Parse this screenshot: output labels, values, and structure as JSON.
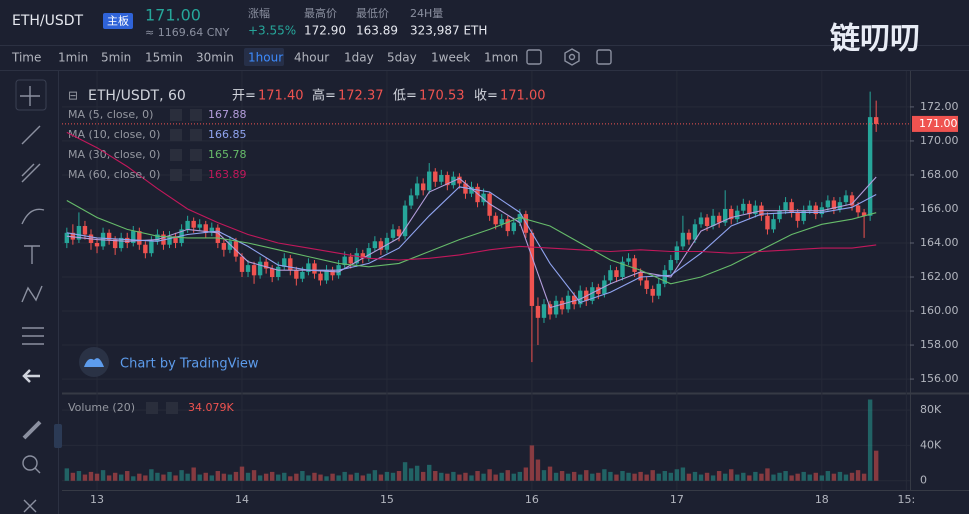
{
  "header": {
    "pair": "ETH/USDT",
    "board": "主板",
    "price": "171.00",
    "cny": "≈ 1169.64 CNY",
    "stats": [
      {
        "label": "涨幅",
        "value": "+3.55%"
      },
      {
        "label": "最高价",
        "value": "172.90"
      },
      {
        "label": "最低价",
        "value": "163.89"
      },
      {
        "label": "24H量",
        "value": "323,987 ETH"
      }
    ],
    "logo": "链叨叨"
  },
  "toolbar": {
    "intervals": [
      "Time",
      "1min",
      "5min",
      "15min",
      "30min",
      "1hour",
      "4hour",
      "1day",
      "5day",
      "1week",
      "1mon"
    ],
    "active": 5
  },
  "chart_data": {
    "type": "candlestick",
    "title": "ETH/USDT, 60",
    "ohlc": {
      "labels": [
        "开=",
        "高=",
        "低=",
        "收="
      ],
      "value_labels": [
        "171.40",
        "172.37",
        "170.53",
        "171.00"
      ]
    },
    "up_color": "#26a69a",
    "down_color": "#ef5350",
    "grid": true,
    "watermark": "Chart by TradingView",
    "xlim": [
      -5.8,
      134.6
    ],
    "xticks": [
      {
        "value": 0,
        "label": "13"
      },
      {
        "value": 24,
        "label": "14"
      },
      {
        "value": 48,
        "label": "15"
      },
      {
        "value": 72,
        "label": "16"
      },
      {
        "value": 96,
        "label": "17"
      },
      {
        "value": 120,
        "label": "18"
      },
      {
        "value": 134,
        "label": "15:"
      }
    ],
    "ylim": [
      155.24,
      173.7
    ],
    "yticks": [
      {
        "value": 156,
        "label": "156.00"
      },
      {
        "value": 158,
        "label": "158.00"
      },
      {
        "value": 160,
        "label": "160.00"
      },
      {
        "value": 162,
        "label": "162.00"
      },
      {
        "value": 164,
        "label": "164.00"
      },
      {
        "value": 166,
        "label": "166.00"
      },
      {
        "value": 168,
        "label": "168.00"
      },
      {
        "value": 170,
        "label": "170.00"
      },
      {
        "value": 172,
        "label": "172.00"
      }
    ],
    "last_price": {
      "value": 171,
      "label": "171.00"
    },
    "x": [
      -5,
      -4,
      -3,
      -2,
      -1,
      0,
      1,
      2,
      3,
      4,
      5,
      6,
      7,
      8,
      9,
      10,
      11,
      12,
      13,
      14,
      15,
      16,
      17,
      18,
      19,
      20,
      21,
      22,
      23,
      24,
      25,
      26,
      27,
      28,
      29,
      30,
      31,
      32,
      33,
      34,
      35,
      36,
      37,
      38,
      39,
      40,
      41,
      42,
      43,
      44,
      45,
      46,
      47,
      48,
      49,
      50,
      51,
      52,
      53,
      54,
      55,
      56,
      57,
      58,
      59,
      60,
      61,
      62,
      63,
      64,
      65,
      66,
      67,
      68,
      69,
      70,
      71,
      72,
      73,
      74,
      75,
      76,
      77,
      78,
      79,
      80,
      81,
      82,
      83,
      84,
      85,
      86,
      87,
      88,
      89,
      90,
      91,
      92,
      93,
      94,
      95,
      96,
      97,
      98,
      99,
      100,
      101,
      102,
      103,
      104,
      105,
      106,
      107,
      108,
      109,
      110,
      111,
      112,
      113,
      114,
      115,
      116,
      117,
      118,
      119,
      120,
      121,
      122,
      123,
      124,
      125,
      126,
      127,
      128,
      129
    ],
    "open": [
      164.0,
      164.6,
      164.2,
      165.0,
      164.5,
      164.0,
      163.8,
      164.6,
      164.2,
      163.7,
      164.3,
      164.0,
      164.7,
      163.9,
      163.4,
      164.1,
      164.5,
      163.9,
      164.4,
      164.0,
      164.8,
      165.3,
      164.9,
      165.1,
      164.6,
      164.9,
      164.0,
      163.6,
      164.1,
      163.2,
      162.3,
      162.7,
      162.1,
      162.9,
      162.5,
      162.0,
      162.6,
      163.1,
      162.4,
      161.9,
      162.3,
      162.8,
      162.2,
      161.8,
      162.4,
      162.1,
      162.7,
      163.2,
      162.8,
      163.4,
      163.1,
      163.7,
      164.1,
      163.6,
      164.3,
      164.8,
      164.4,
      166.2,
      166.8,
      167.5,
      167.1,
      168.2,
      167.6,
      168.0,
      167.4,
      167.9,
      167.5,
      166.9,
      167.3,
      166.4,
      166.9,
      165.6,
      165.1,
      165.4,
      164.7,
      165.2,
      165.7,
      164.6,
      160.3,
      159.6,
      160.4,
      159.8,
      160.6,
      160.1,
      160.9,
      160.4,
      161.2,
      160.6,
      161.4,
      161.0,
      161.8,
      162.4,
      162.0,
      162.9,
      163.1,
      162.3,
      161.8,
      161.3,
      160.9,
      161.6,
      162.4,
      163.0,
      163.8,
      164.6,
      164.2,
      165.1,
      165.5,
      165.0,
      165.6,
      165.2,
      166.0,
      165.4,
      165.9,
      166.3,
      165.7,
      166.2,
      165.6,
      164.8,
      165.4,
      165.9,
      166.4,
      165.8,
      165.3,
      165.9,
      166.2,
      165.7,
      166.1,
      166.5,
      166.0,
      166.4,
      166.8,
      166.2,
      165.8,
      165.6,
      171.4
    ],
    "high": [
      164.9,
      165.1,
      165.8,
      165.3,
      164.8,
      164.3,
      164.9,
      164.8,
      164.4,
      164.6,
      164.6,
      165.0,
      164.9,
      164.1,
      164.4,
      164.8,
      164.7,
      164.7,
      164.6,
      165.1,
      165.6,
      165.5,
      165.4,
      165.3,
      165.2,
      165.1,
      164.2,
      164.4,
      164.3,
      163.4,
      163.0,
      162.9,
      163.2,
      163.1,
      162.7,
      162.9,
      163.4,
      163.3,
      162.6,
      162.6,
      163.1,
      163.0,
      162.4,
      162.7,
      162.6,
      163.0,
      163.5,
      163.4,
      163.7,
      163.6,
      164.0,
      164.4,
      164.3,
      164.6,
      165.1,
      165.0,
      166.5,
      167.2,
      167.9,
      167.8,
      168.7,
      168.4,
      168.3,
      168.2,
      168.2,
      168.1,
      167.7,
      167.6,
      167.5,
      167.2,
      167.0,
      165.8,
      165.7,
      165.6,
      165.5,
      166.0,
      165.9,
      164.8,
      160.8,
      160.7,
      160.6,
      160.9,
      160.8,
      161.2,
      161.1,
      161.5,
      161.4,
      161.7,
      161.6,
      162.1,
      162.7,
      162.6,
      163.2,
      163.4,
      163.3,
      162.5,
      162.0,
      161.5,
      161.9,
      162.7,
      163.3,
      164.1,
      165.6,
      164.8,
      165.4,
      165.8,
      165.7,
      166.0,
      165.8,
      167.1,
      166.2,
      166.2,
      166.6,
      166.5,
      166.5,
      166.4,
      165.8,
      165.7,
      166.2,
      166.7,
      166.6,
      166.0,
      166.2,
      166.5,
      166.4,
      166.4,
      166.8,
      166.7,
      166.7,
      167.1,
      167.0,
      166.4,
      166.0,
      172.9,
      172.37
    ],
    "low": [
      163.7,
      163.9,
      164.0,
      164.2,
      163.6,
      163.4,
      163.6,
      163.9,
      163.3,
      163.5,
      163.7,
      163.8,
      163.6,
      163.1,
      163.2,
      163.9,
      163.6,
      163.7,
      163.7,
      163.8,
      164.6,
      164.6,
      164.7,
      164.3,
      164.4,
      163.7,
      163.2,
      163.4,
      162.9,
      162.0,
      162.0,
      161.6,
      161.9,
      162.2,
      161.7,
      161.8,
      162.4,
      162.1,
      161.5,
      161.7,
      162.1,
      161.9,
      161.5,
      161.6,
      161.8,
      161.9,
      162.5,
      162.5,
      162.6,
      162.8,
      162.9,
      163.5,
      163.3,
      163.4,
      164.1,
      164.1,
      164.2,
      166.0,
      166.6,
      166.8,
      166.9,
      167.3,
      167.4,
      167.1,
      167.2,
      167.2,
      166.6,
      166.7,
      166.1,
      166.2,
      165.3,
      164.8,
      164.9,
      164.4,
      164.5,
      165.0,
      164.3,
      157.0,
      158.0,
      159.3,
      159.5,
      159.6,
      159.8,
      159.9,
      160.1,
      160.2,
      160.3,
      160.4,
      160.7,
      160.8,
      161.6,
      161.7,
      161.8,
      162.7,
      162.0,
      161.5,
      161.0,
      160.5,
      160.7,
      161.4,
      162.2,
      162.8,
      163.6,
      163.9,
      164.0,
      164.9,
      164.7,
      164.8,
      164.9,
      165.0,
      165.1,
      165.2,
      165.7,
      165.4,
      165.5,
      165.3,
      164.5,
      164.6,
      165.2,
      165.7,
      165.5,
      164.9,
      165.1,
      165.7,
      165.4,
      165.5,
      165.9,
      165.7,
      165.8,
      166.2,
      165.9,
      165.5,
      164.3,
      165.3,
      170.53
    ],
    "close": [
      164.6,
      164.2,
      165.0,
      164.5,
      164.0,
      163.8,
      164.6,
      164.2,
      163.7,
      164.3,
      164.0,
      164.7,
      163.9,
      163.4,
      164.1,
      164.5,
      163.9,
      164.4,
      164.0,
      164.8,
      165.3,
      164.9,
      165.1,
      164.6,
      164.9,
      164.0,
      163.6,
      164.1,
      163.2,
      162.3,
      162.7,
      162.1,
      162.9,
      162.5,
      162.0,
      162.6,
      163.1,
      162.4,
      161.9,
      162.3,
      162.8,
      162.2,
      161.8,
      162.4,
      162.1,
      162.7,
      163.2,
      162.8,
      163.4,
      163.1,
      163.7,
      164.1,
      163.6,
      164.3,
      164.8,
      164.4,
      166.2,
      166.8,
      167.5,
      167.1,
      168.2,
      167.6,
      168.0,
      167.4,
      167.9,
      167.5,
      166.9,
      167.3,
      166.4,
      166.9,
      165.6,
      165.1,
      165.4,
      164.7,
      165.2,
      165.7,
      164.6,
      160.3,
      159.6,
      160.4,
      159.8,
      160.6,
      160.1,
      160.9,
      160.4,
      161.2,
      160.6,
      161.4,
      161.0,
      161.8,
      162.4,
      162.0,
      162.9,
      163.1,
      162.3,
      161.8,
      161.3,
      160.9,
      161.6,
      162.4,
      163.0,
      163.8,
      164.6,
      164.2,
      165.1,
      165.5,
      165.0,
      165.6,
      165.2,
      166.0,
      165.4,
      165.9,
      166.3,
      165.7,
      166.2,
      165.6,
      164.8,
      165.4,
      165.9,
      166.4,
      165.8,
      165.3,
      165.9,
      166.2,
      165.7,
      166.1,
      166.5,
      166.0,
      166.4,
      166.8,
      166.2,
      165.8,
      165.6,
      171.4,
      171.0
    ],
    "ma": [
      {
        "name": "MA (5, close, 0)",
        "color": "#b39ddb",
        "x": [
          -5,
          0,
          5,
          10,
          15,
          20,
          25,
          30,
          35,
          40,
          45,
          50,
          55,
          60,
          65,
          70,
          75,
          80,
          85,
          90,
          95,
          100,
          105,
          110,
          115,
          120,
          125,
          129
        ],
        "values": [
          164.4,
          164.2,
          164.1,
          164.2,
          164.8,
          164.6,
          162.9,
          162.4,
          162.4,
          162.3,
          163.3,
          164.3,
          167.0,
          167.8,
          166.3,
          165.2,
          160.2,
          160.7,
          161.6,
          162.3,
          162.0,
          164.7,
          165.5,
          165.9,
          165.9,
          165.9,
          166.3,
          167.88
        ]
      },
      {
        "name": "MA (10, close, 0)",
        "color": "#90a4f0",
        "x": [
          -5,
          0,
          5,
          10,
          15,
          20,
          25,
          30,
          35,
          40,
          45,
          50,
          55,
          60,
          65,
          70,
          75,
          80,
          85,
          90,
          95,
          100,
          105,
          110,
          115,
          120,
          125,
          129
        ],
        "values": [
          164.6,
          164.3,
          164.2,
          164.1,
          164.5,
          164.7,
          163.8,
          162.7,
          162.4,
          162.4,
          162.8,
          163.7,
          165.6,
          167.3,
          167.0,
          165.8,
          162.8,
          160.5,
          161.1,
          162.0,
          162.1,
          163.4,
          165.0,
          165.7,
          165.8,
          165.8,
          166.1,
          166.85
        ]
      },
      {
        "name": "MA (30, close, 0)",
        "color": "#66bb6a",
        "x": [
          -5,
          0,
          5,
          10,
          15,
          20,
          25,
          30,
          35,
          40,
          45,
          50,
          55,
          60,
          65,
          70,
          75,
          80,
          85,
          90,
          95,
          100,
          105,
          110,
          115,
          120,
          125,
          129
        ],
        "values": [
          166.5,
          165.5,
          164.8,
          164.4,
          164.3,
          164.3,
          164.0,
          163.6,
          163.2,
          162.8,
          162.6,
          162.8,
          163.5,
          164.2,
          164.8,
          165.5,
          165.0,
          164.0,
          163.0,
          162.4,
          161.6,
          162.0,
          162.7,
          163.6,
          164.5,
          165.1,
          165.4,
          165.78
        ]
      },
      {
        "name": "MA (60, close, 0)",
        "color": "#c2185b",
        "x": [
          -5,
          0,
          5,
          10,
          15,
          20,
          25,
          30,
          35,
          40,
          45,
          50,
          55,
          60,
          65,
          70,
          75,
          80,
          85,
          90,
          95,
          100,
          105,
          110,
          115,
          120,
          125,
          129
        ],
        "values": [
          170.5,
          169.6,
          168.5,
          167.2,
          166.0,
          165.2,
          164.5,
          164.0,
          163.7,
          163.4,
          163.1,
          163.0,
          163.1,
          163.3,
          163.6,
          163.8,
          163.7,
          163.6,
          163.5,
          163.6,
          163.5,
          163.5,
          163.4,
          163.5,
          163.6,
          163.7,
          163.7,
          163.89
        ]
      }
    ],
    "volume": {
      "title": "Volume (20)",
      "last_label": "34.079K",
      "ylim": [
        -10500,
        96000
      ],
      "yticks": [
        {
          "value": 0,
          "label": "0"
        },
        {
          "value": 40000,
          "label": "40K"
        },
        {
          "value": 80000,
          "label": "80K"
        }
      ],
      "values": [
        14000,
        9000,
        11000,
        7000,
        10000,
        8000,
        12000,
        6000,
        9000,
        7000,
        11000,
        5000,
        8000,
        6000,
        13000,
        9000,
        7000,
        10000,
        6000,
        12000,
        8000,
        15000,
        7000,
        9000,
        6000,
        11000,
        8000,
        7000,
        10000,
        16000,
        9000,
        12000,
        6000,
        8000,
        10000,
        7000,
        9000,
        5000,
        8000,
        11000,
        6000,
        9000,
        7000,
        5000,
        8000,
        6000,
        10000,
        7000,
        9000,
        6000,
        8000,
        12000,
        7000,
        10000,
        9000,
        11000,
        21000,
        14000,
        17000,
        10000,
        18000,
        11000,
        9000,
        8000,
        10000,
        7000,
        9000,
        6000,
        11000,
        8000,
        13000,
        7000,
        9000,
        12000,
        8000,
        10000,
        15000,
        40000,
        24000,
        12000,
        16000,
        9000,
        11000,
        8000,
        10000,
        7000,
        12000,
        8000,
        9000,
        13000,
        10000,
        7000,
        11000,
        9000,
        8000,
        10000,
        7000,
        12000,
        8000,
        11000,
        9000,
        13000,
        15000,
        8000,
        10000,
        7000,
        9000,
        6000,
        11000,
        8000,
        13000,
        7000,
        9000,
        6000,
        10000,
        8000,
        14000,
        7000,
        9000,
        11000,
        6000,
        8000,
        10000,
        7000,
        9000,
        6000,
        11000,
        8000,
        10000,
        7000,
        9000,
        12000,
        8000,
        92000,
        34079
      ]
    }
  }
}
